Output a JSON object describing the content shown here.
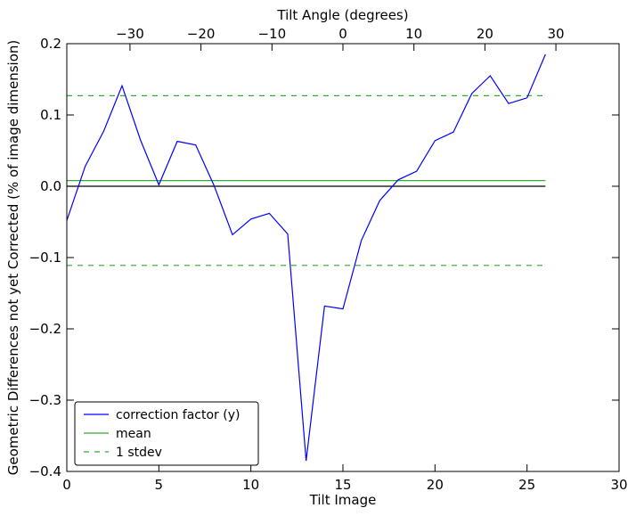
{
  "chart_data": {
    "type": "line",
    "xlabel": "Tilt Image",
    "ylabel": "Geometric Differences not yet Corrected (% of image dimension)",
    "x2label": "Tilt Angle (degrees)",
    "xlim": [
      0,
      30
    ],
    "ylim": [
      -0.4,
      0.2
    ],
    "x2lim": [
      -38.9,
      38.9
    ],
    "xticks": [
      0,
      5,
      10,
      15,
      20,
      25,
      30
    ],
    "yticks": [
      -0.4,
      -0.3,
      -0.2,
      -0.1,
      0.0,
      0.1,
      0.2
    ],
    "x2ticks": [
      -30,
      -20,
      -10,
      0,
      10,
      20,
      30
    ],
    "xtick_labels": [
      "0",
      "5",
      "10",
      "15",
      "20",
      "25",
      "30"
    ],
    "ytick_labels": [
      "−0.4",
      "−0.3",
      "−0.2",
      "−0.1",
      "0.0",
      "0.1",
      "0.2"
    ],
    "x2tick_labels": [
      "−30",
      "−20",
      "−10",
      "0",
      "10",
      "20",
      "30"
    ],
    "grid": false,
    "legend_position": "bottom-left",
    "series": [
      {
        "name": "correction factor (y)",
        "color": "#0000ff",
        "style": "solid",
        "x": [
          0,
          1,
          2,
          3,
          4,
          5,
          6,
          7,
          8,
          9,
          10,
          11,
          12,
          13,
          14,
          15,
          16,
          17,
          18,
          19,
          20,
          21,
          22,
          23,
          24,
          25,
          26
        ],
        "y": [
          -0.048,
          0.028,
          0.077,
          0.141,
          0.065,
          0.002,
          0.063,
          0.058,
          0.001,
          -0.068,
          -0.046,
          -0.038,
          -0.067,
          -0.385,
          -0.168,
          -0.172,
          -0.076,
          -0.02,
          0.009,
          0.021,
          0.064,
          0.076,
          0.13,
          0.155,
          0.116,
          0.124,
          0.185
        ]
      },
      {
        "name": "mean",
        "color": "#33aa33",
        "style": "solid",
        "x": [
          0,
          26
        ],
        "y": [
          0.008,
          0.008
        ]
      },
      {
        "name": "1 stdev",
        "color": "#33aa33",
        "style": "dashed",
        "x": [
          0,
          26
        ],
        "y": [
          0.127,
          0.127
        ]
      },
      {
        "name": "",
        "color": "#33aa33",
        "style": "dashed",
        "x": [
          0,
          26
        ],
        "y": [
          -0.111,
          -0.111
        ]
      },
      {
        "name": "",
        "color": "#000000",
        "style": "solid",
        "x": [
          0,
          26
        ],
        "y": [
          0.0,
          0.0
        ]
      }
    ]
  }
}
